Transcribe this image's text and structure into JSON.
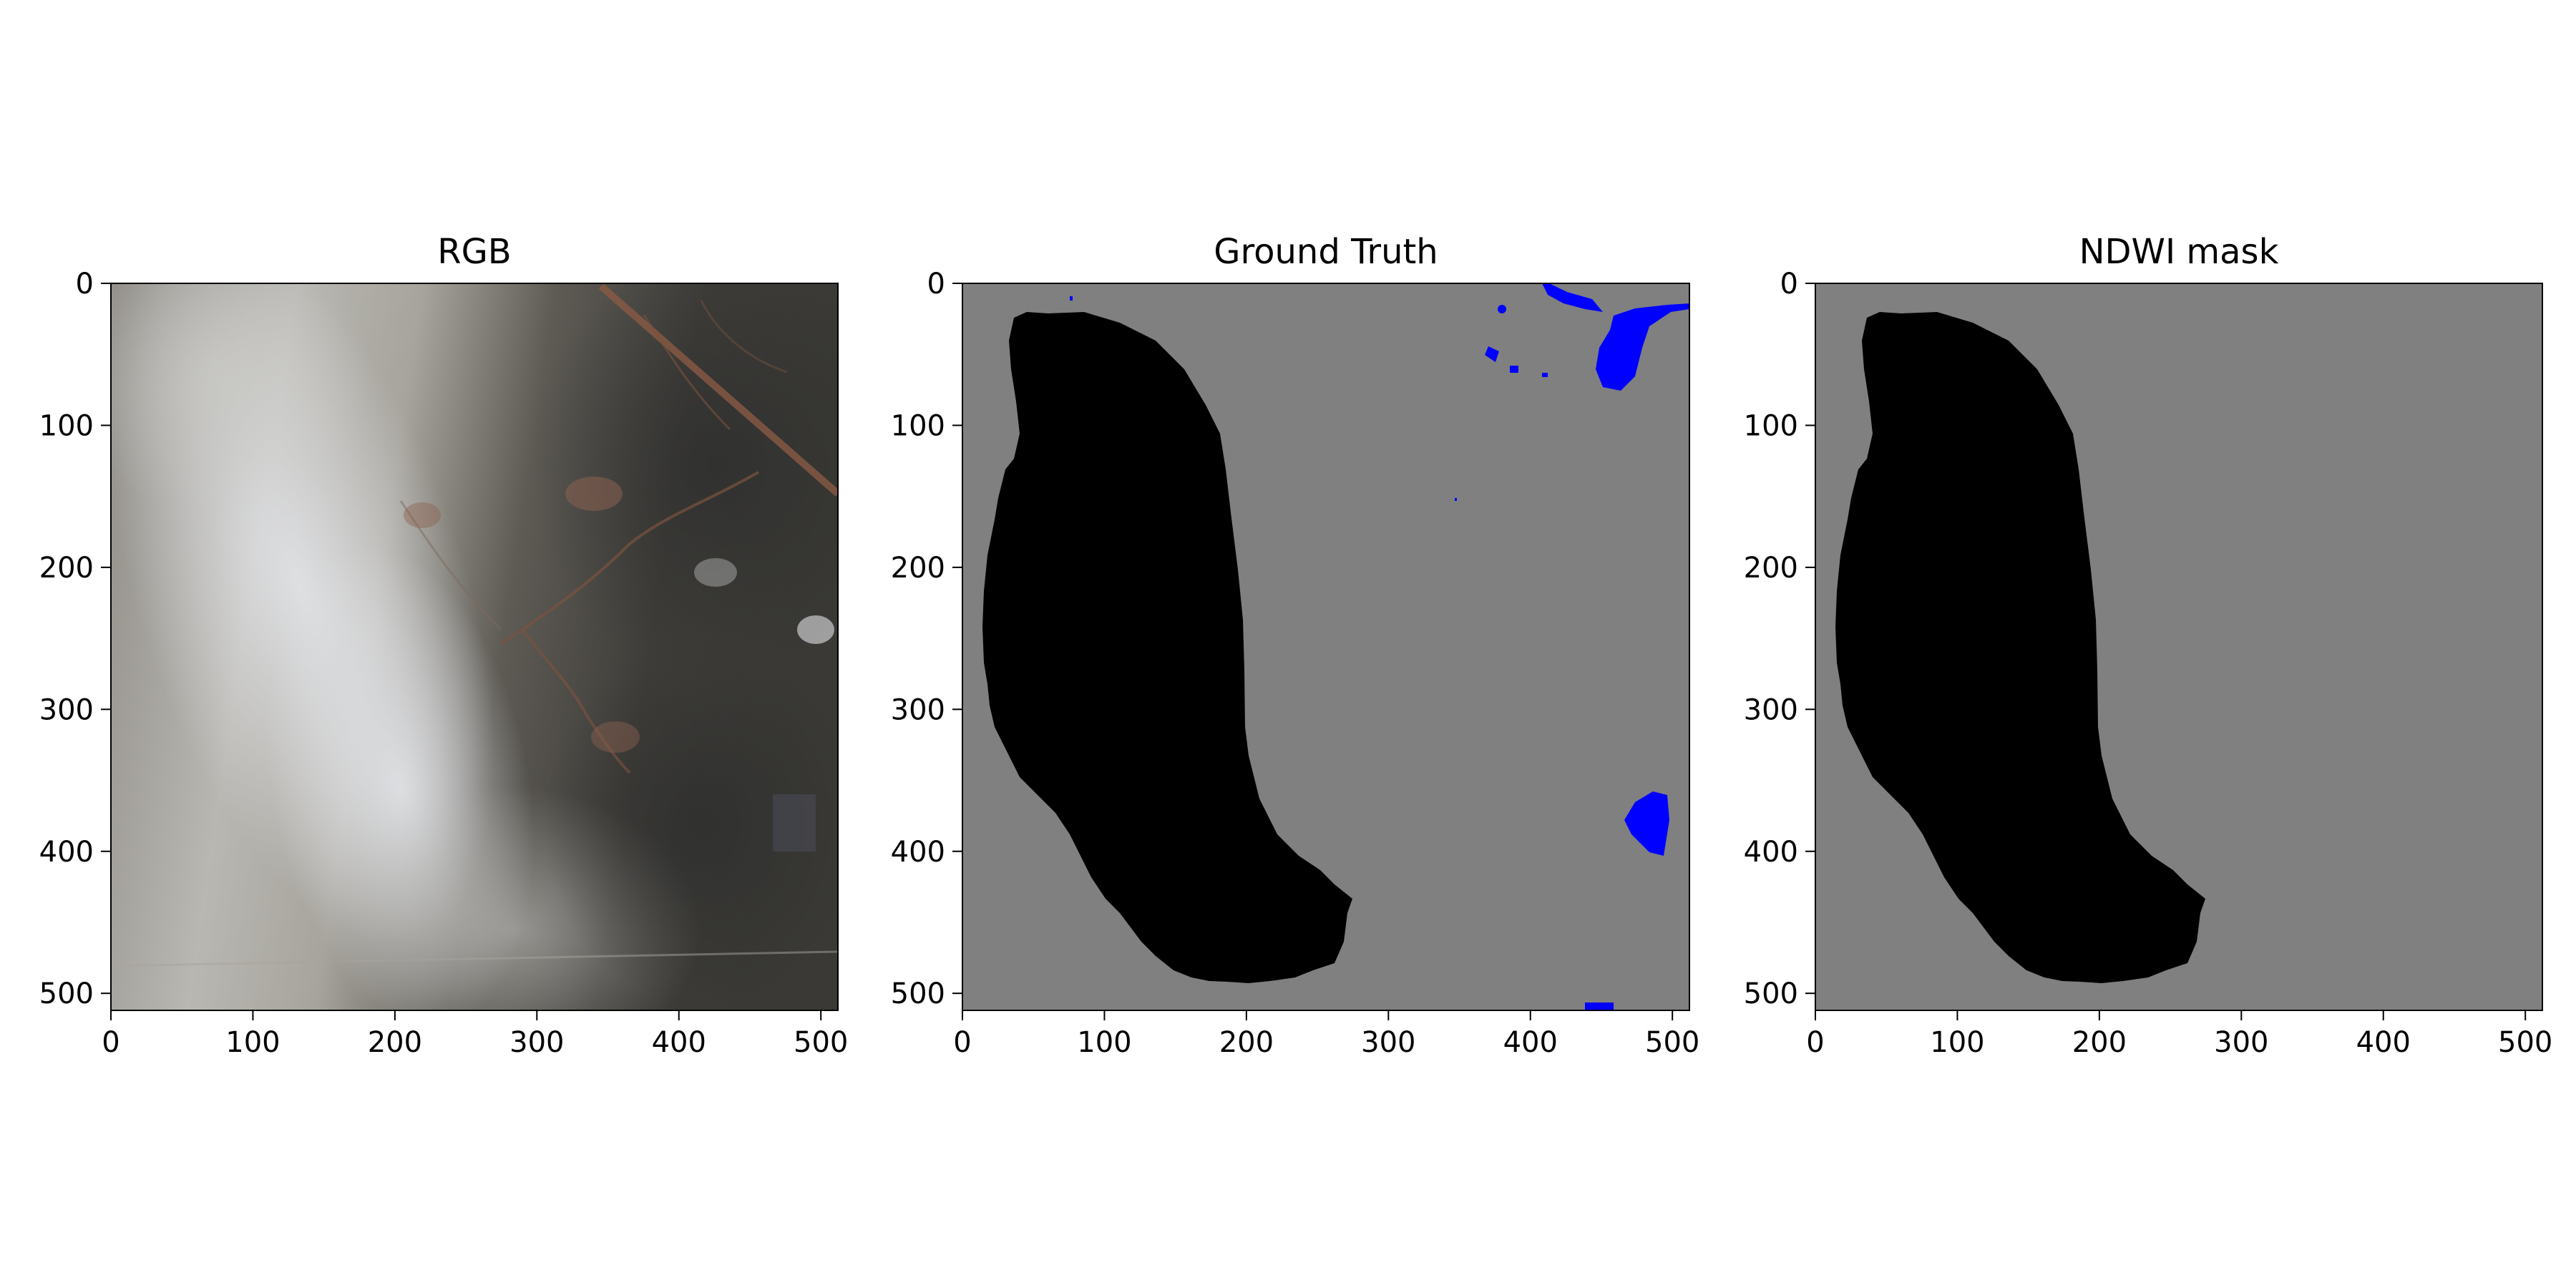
{
  "panels": [
    {
      "id": "rgb",
      "title": "RGB"
    },
    {
      "id": "gt",
      "title": "Ground Truth"
    },
    {
      "id": "ndwi",
      "title": "NDWI mask"
    }
  ],
  "axis": {
    "xticks": [
      "0",
      "100",
      "200",
      "300",
      "400",
      "500"
    ],
    "yticks": [
      "0",
      "100",
      "200",
      "300",
      "400",
      "500"
    ]
  },
  "colors": {
    "mask_background": "#808080",
    "mask_region": "#000000",
    "water_highlight": "#0000ff"
  }
}
